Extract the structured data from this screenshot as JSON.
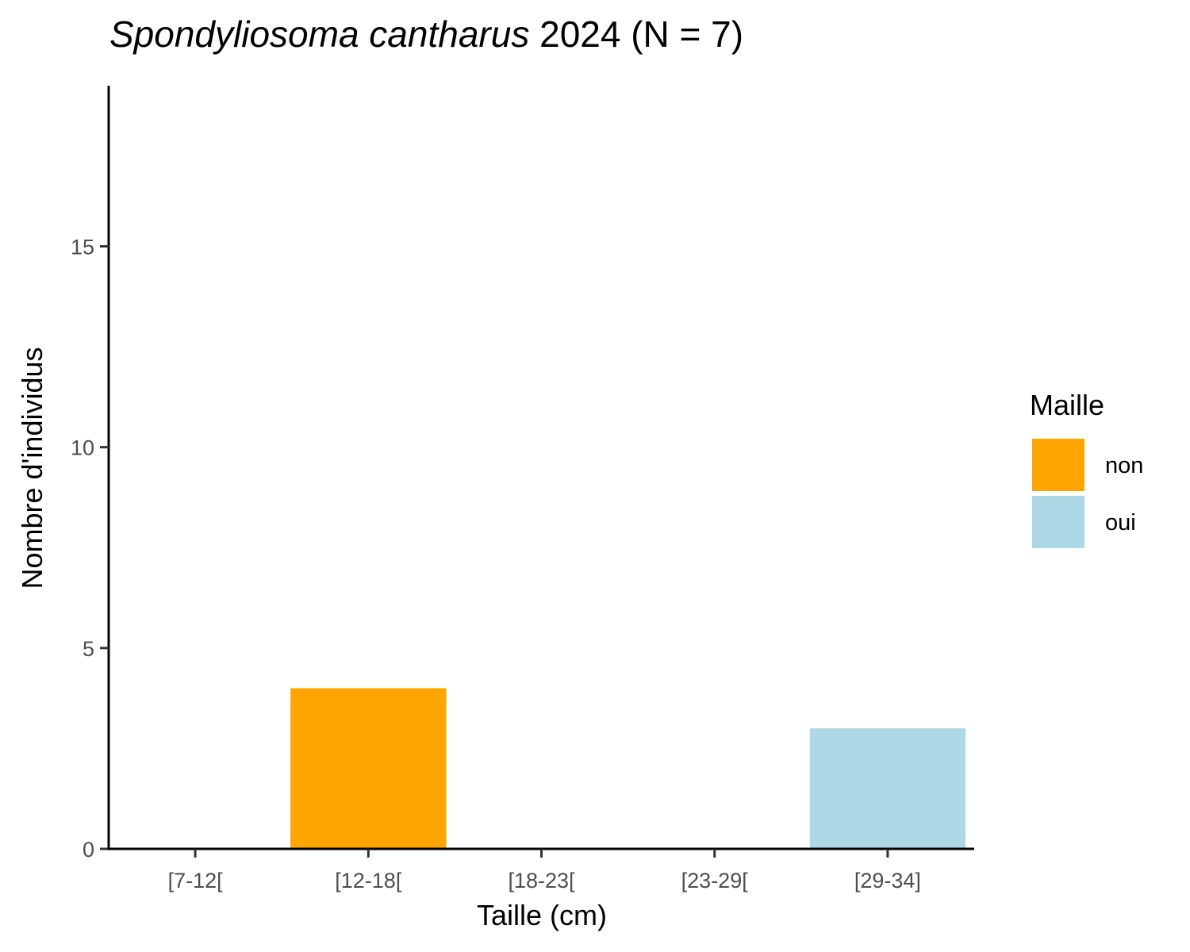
{
  "chart_data": {
    "type": "bar",
    "title": {
      "species": "Spondyliosoma cantharus",
      "suffix": " 2024 (N = 7)"
    },
    "xlabel": "Taille (cm)",
    "ylabel": "Nombre d'individus",
    "categories": [
      "[7-12[",
      "[12-18[",
      "[18-23[",
      "[23-29[",
      "[29-34]"
    ],
    "ylim": [
      0,
      19
    ],
    "yticks": [
      0,
      5,
      10,
      15
    ],
    "series": [
      {
        "name": "non",
        "color": "#FFA500",
        "values": [
          0,
          4,
          0,
          0,
          0
        ]
      },
      {
        "name": "oui",
        "color": "#ADD8E6",
        "values": [
          0,
          0,
          0,
          0,
          3
        ]
      }
    ],
    "legend": {
      "title": "Maille",
      "position": "right"
    },
    "grid": false
  }
}
